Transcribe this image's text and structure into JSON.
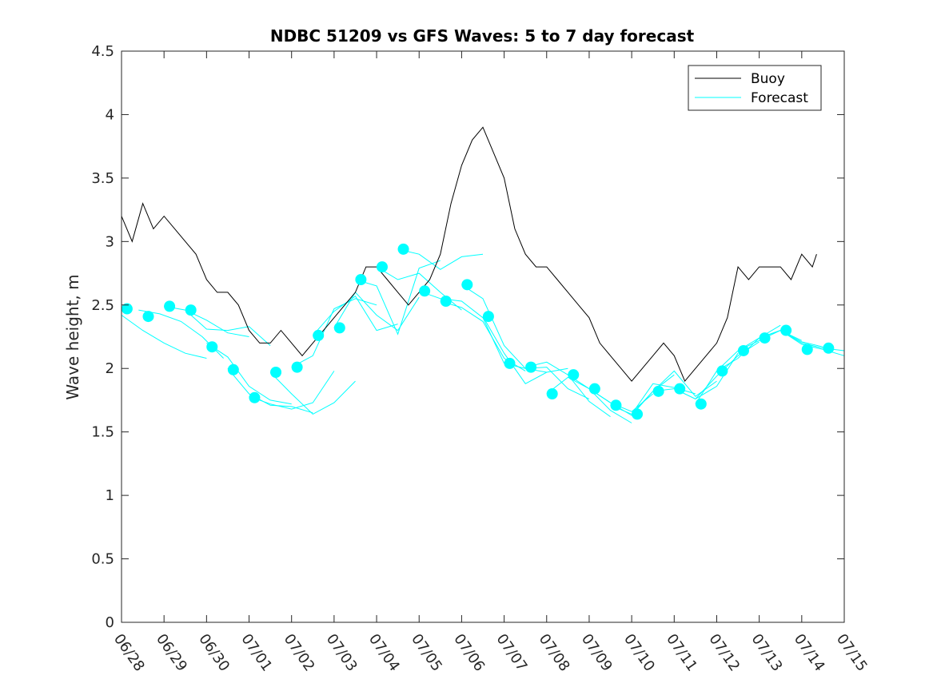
{
  "chart_data": {
    "type": "line",
    "title": "NDBC 51209 vs GFS Waves: 5 to 7 day forecast",
    "xlabel": "",
    "ylabel": "Wave height, m",
    "xlim": [
      0,
      17
    ],
    "ylim": [
      0,
      4.5
    ],
    "yticks": [
      0,
      0.5,
      1,
      1.5,
      2,
      2.5,
      3,
      3.5,
      4,
      4.5
    ],
    "ytick_labels": [
      "0",
      "0.5",
      "1",
      "1.5",
      "2",
      "2.5",
      "3",
      "3.5",
      "4",
      "4.5"
    ],
    "xticks": [
      0,
      1,
      2,
      3,
      4,
      5,
      6,
      7,
      8,
      9,
      10,
      11,
      12,
      13,
      14,
      15,
      16,
      17
    ],
    "xtick_labels": [
      "06/28",
      "06/29",
      "06/30",
      "07/01",
      "07/02",
      "07/03",
      "07/04",
      "07/05",
      "07/06",
      "07/07",
      "07/08",
      "07/09",
      "07/10",
      "07/11",
      "07/12",
      "07/13",
      "07/14",
      "07/15"
    ],
    "grid": false,
    "legend": {
      "position": "top-right",
      "entries": [
        "Buoy",
        "Forecast"
      ]
    },
    "colors": {
      "buoy": "#000000",
      "forecast": "#00FFFF"
    },
    "series": [
      {
        "name": "Buoy",
        "x": [
          0,
          0.25,
          0.5,
          0.75,
          1,
          1.25,
          1.5,
          1.75,
          2,
          2.25,
          2.5,
          2.75,
          3,
          3.25,
          3.5,
          3.75,
          4,
          4.25,
          4.5,
          4.75,
          5,
          5.25,
          5.5,
          5.75,
          6,
          6.25,
          6.5,
          6.75,
          7,
          7.25,
          7.5,
          7.75,
          8,
          8.25,
          8.5,
          8.75,
          9,
          9.25,
          9.5,
          9.75,
          10,
          10.25,
          10.5,
          10.75,
          11,
          11.25,
          11.5,
          11.75,
          12,
          12.25,
          12.5,
          12.75,
          13,
          13.25,
          13.5,
          13.75,
          14,
          14.25,
          14.5,
          14.75,
          15,
          15.25,
          15.5,
          15.75,
          16,
          16.25,
          16.35
        ],
        "values": [
          3.2,
          3.0,
          3.3,
          3.1,
          3.2,
          3.1,
          3.0,
          2.9,
          2.7,
          2.6,
          2.6,
          2.5,
          2.3,
          2.2,
          2.2,
          2.3,
          2.2,
          2.1,
          2.2,
          2.3,
          2.4,
          2.5,
          2.6,
          2.8,
          2.8,
          2.7,
          2.6,
          2.5,
          2.6,
          2.7,
          2.9,
          3.3,
          3.6,
          3.8,
          3.9,
          3.7,
          3.5,
          3.1,
          2.9,
          2.8,
          2.8,
          2.7,
          2.6,
          2.5,
          2.4,
          2.2,
          2.1,
          2.0,
          1.9,
          2.0,
          2.1,
          2.2,
          2.1,
          1.9,
          2.0,
          2.1,
          2.2,
          2.4,
          2.8,
          2.7,
          2.8,
          2.8,
          2.8,
          2.7,
          2.9,
          2.8,
          2.9
        ]
      }
    ],
    "forecast_markers": {
      "x": [
        0.13,
        0.63,
        1.13,
        1.63,
        2.13,
        2.63,
        3.13,
        3.63,
        4.13,
        4.63,
        5.13,
        5.63,
        6.13,
        6.63,
        7.13,
        7.63,
        8.13,
        8.63,
        9.13,
        9.63,
        10.13,
        10.63,
        11.13,
        11.63,
        12.13,
        12.63,
        13.13,
        13.63,
        14.13,
        14.63,
        15.13,
        15.63,
        16.13,
        16.63
      ],
      "values": [
        2.47,
        2.41,
        2.49,
        2.46,
        2.17,
        1.99,
        1.77,
        1.97,
        2.01,
        2.26,
        2.32,
        2.7,
        2.8,
        2.94,
        2.61,
        2.53,
        2.66,
        2.41,
        2.04,
        2.01,
        1.8,
        1.95,
        1.84,
        1.71,
        1.64,
        1.82,
        1.84,
        1.72,
        1.98,
        2.14,
        2.24,
        2.3,
        2.15,
        2.16
      ]
    },
    "forecast_traces": [
      {
        "x": [
          0,
          0.5,
          1,
          1.5,
          2.0
        ],
        "values": [
          2.42,
          2.3,
          2.2,
          2.12,
          2.08
        ]
      },
      {
        "x": [
          0.4,
          0.9,
          1.4,
          1.9,
          2.4
        ],
        "values": [
          2.46,
          2.43,
          2.37,
          2.25,
          2.08
        ]
      },
      {
        "x": [
          1,
          1.5,
          2,
          2.5,
          3
        ],
        "values": [
          2.49,
          2.46,
          2.38,
          2.28,
          2.25
        ]
      },
      {
        "x": [
          1.5,
          2,
          2.5,
          3,
          3.5
        ],
        "values": [
          2.46,
          2.31,
          2.3,
          2.33,
          2.18
        ]
      },
      {
        "x": [
          2.0,
          2.5,
          3,
          3.5,
          4
        ],
        "values": [
          2.2,
          2.09,
          1.86,
          1.75,
          1.72
        ]
      },
      {
        "x": [
          2.5,
          3,
          3.5,
          4,
          4.5
        ],
        "values": [
          2.0,
          1.8,
          1.71,
          1.7,
          1.65
        ]
      },
      {
        "x": [
          3,
          3.5,
          4,
          4.5,
          5
        ],
        "values": [
          1.78,
          1.72,
          1.68,
          1.73,
          1.98
        ]
      },
      {
        "x": [
          3.5,
          4,
          4.5,
          5,
          5.5
        ],
        "values": [
          1.97,
          1.8,
          1.64,
          1.73,
          1.9
        ]
      },
      {
        "x": [
          4,
          4.5,
          5,
          5.5,
          6
        ],
        "values": [
          2.01,
          2.1,
          2.47,
          2.55,
          2.5
        ]
      },
      {
        "x": [
          4.5,
          5,
          5.5,
          6,
          6.5
        ],
        "values": [
          2.26,
          2.45,
          2.57,
          2.3,
          2.35
        ]
      },
      {
        "x": [
          5,
          5.5,
          6,
          6.5,
          7
        ],
        "values": [
          2.32,
          2.6,
          2.42,
          2.3,
          2.56
        ]
      },
      {
        "x": [
          5.5,
          6,
          6.5,
          7,
          7.5
        ],
        "values": [
          2.7,
          2.65,
          2.27,
          2.79,
          2.85
        ]
      },
      {
        "x": [
          6,
          6.5,
          7,
          7.5,
          8
        ],
        "values": [
          2.8,
          2.7,
          2.75,
          2.6,
          2.46
        ]
      },
      {
        "x": [
          6.5,
          7,
          7.5,
          8,
          8.5
        ],
        "values": [
          2.94,
          2.9,
          2.78,
          2.88,
          2.9
        ]
      },
      {
        "x": [
          7,
          7.5,
          8,
          8.5,
          9
        ],
        "values": [
          2.61,
          2.55,
          2.53,
          2.4,
          2.04
        ]
      },
      {
        "x": [
          7.5,
          8,
          8.5,
          9,
          9.5
        ],
        "values": [
          2.53,
          2.48,
          2.37,
          2.08,
          1.98
        ]
      },
      {
        "x": [
          8,
          8.5,
          9,
          9.5,
          10
        ],
        "values": [
          2.66,
          2.55,
          2.18,
          2.0,
          1.97
        ]
      },
      {
        "x": [
          8.5,
          9,
          9.5,
          10,
          10.5
        ],
        "values": [
          2.41,
          2.12,
          1.88,
          1.97,
          2.0
        ]
      },
      {
        "x": [
          9,
          9.5,
          10,
          10.5,
          11
        ],
        "values": [
          2.04,
          2.0,
          2.01,
          1.84,
          1.76
        ]
      },
      {
        "x": [
          9.5,
          10,
          10.5,
          11,
          11.5
        ],
        "values": [
          2.01,
          2.05,
          1.95,
          1.74,
          1.62
        ]
      },
      {
        "x": [
          10,
          10.5,
          11,
          11.5,
          12
        ],
        "values": [
          1.8,
          1.93,
          1.84,
          1.67,
          1.57
        ]
      },
      {
        "x": [
          10.5,
          11,
          11.5,
          12,
          12.5
        ],
        "values": [
          1.95,
          1.84,
          1.73,
          1.66,
          1.8
        ]
      },
      {
        "x": [
          11,
          11.5,
          12,
          12.5,
          13
        ],
        "values": [
          1.84,
          1.73,
          1.63,
          1.82,
          1.95
        ]
      },
      {
        "x": [
          11.5,
          12,
          12.5,
          13,
          13.5
        ],
        "values": [
          1.71,
          1.64,
          1.88,
          1.85,
          1.8
        ]
      },
      {
        "x": [
          12,
          12.5,
          13,
          13.5,
          14
        ],
        "values": [
          1.64,
          1.82,
          1.98,
          1.78,
          1.9
        ]
      },
      {
        "x": [
          12.5,
          13,
          13.5,
          14,
          14.5
        ],
        "values": [
          1.82,
          1.84,
          1.76,
          1.86,
          2.12
        ]
      },
      {
        "x": [
          13,
          13.5,
          14,
          14.5,
          15
        ],
        "values": [
          1.84,
          1.76,
          1.94,
          2.1,
          2.21
        ]
      },
      {
        "x": [
          13.5,
          14,
          14.5,
          15,
          15.5
        ],
        "values": [
          1.72,
          1.98,
          2.08,
          2.24,
          2.34
        ]
      },
      {
        "x": [
          14,
          14.5,
          15,
          15.5,
          16
        ],
        "values": [
          1.98,
          2.14,
          2.22,
          2.3,
          2.22
        ]
      },
      {
        "x": [
          14.5,
          15,
          15.5,
          16,
          16.5
        ],
        "values": [
          2.14,
          2.24,
          2.3,
          2.21,
          2.17
        ]
      },
      {
        "x": [
          15,
          15.5,
          16,
          16.5,
          17
        ],
        "values": [
          2.24,
          2.3,
          2.19,
          2.15,
          2.1
        ]
      },
      {
        "x": [
          15.5,
          16,
          16.5,
          17
        ],
        "values": [
          2.3,
          2.2,
          2.16,
          2.14
        ]
      }
    ]
  }
}
